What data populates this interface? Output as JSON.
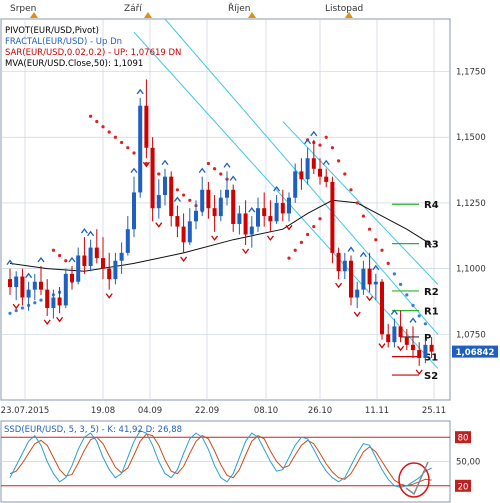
{
  "months": [
    "Srpen",
    "Září",
    "Říjen",
    "Listopad"
  ],
  "main": {
    "indicators": [
      {
        "text": "PIVOT(EUR/USD,Pivot)",
        "color": "#000000"
      },
      {
        "text": "FRACTAL(EUR/USD) -  Up  Dn",
        "color": "#1f5fbf"
      },
      {
        "text": "SAR(EUR/USD,0.02,0.2) -  UP: 1,07619  DN",
        "color": "#d00000"
      },
      {
        "text": "MVA(EUR/USD.Close,50): 1,1091",
        "color": "#000000"
      }
    ],
    "price_ticks": [
      "1,1750",
      "1,1500",
      "1,1250",
      "1,1000",
      "1,0750"
    ],
    "current_price": "1,06842",
    "x_ticks": [
      "23.07.2015",
      "19.08",
      "04.09",
      "22.09",
      "08.10",
      "26.10",
      "11.11",
      "25.11"
    ],
    "pivots": [
      {
        "label": "R4",
        "value": 1.1245
      },
      {
        "label": "R3",
        "value": 1.1095
      },
      {
        "label": "R2",
        "value": 1.0915
      },
      {
        "label": "R1",
        "value": 1.084
      },
      {
        "label": "P",
        "value": 1.074
      },
      {
        "label": "S1",
        "value": 1.0665
      },
      {
        "label": "S2",
        "value": 1.0595
      }
    ]
  },
  "oscillator": {
    "title": "SSD(EUR/USD, 5, 3, 5) - K: 41,92  D: 26,88",
    "ticks": [
      "80",
      "50,00",
      "20"
    ]
  },
  "chart_data": {
    "type": "candlestick",
    "symbol": "EUR/USD",
    "ylim": [
      1.05,
      1.195
    ],
    "current": 1.06842,
    "candles": [
      {
        "o": 1.096,
        "h": 1.1,
        "l": 1.09,
        "c": 1.093
      },
      {
        "o": 1.093,
        "h": 1.099,
        "l": 1.088,
        "c": 1.097
      },
      {
        "o": 1.097,
        "h": 1.1,
        "l": 1.086,
        "c": 1.089
      },
      {
        "o": 1.089,
        "h": 1.095,
        "l": 1.084,
        "c": 1.092
      },
      {
        "o": 1.092,
        "h": 1.098,
        "l": 1.088,
        "c": 1.095
      },
      {
        "o": 1.095,
        "h": 1.101,
        "l": 1.09,
        "c": 1.092
      },
      {
        "o": 1.092,
        "h": 1.096,
        "l": 1.082,
        "c": 1.085
      },
      {
        "o": 1.085,
        "h": 1.092,
        "l": 1.081,
        "c": 1.089
      },
      {
        "o": 1.089,
        "h": 1.093,
        "l": 1.083,
        "c": 1.086
      },
      {
        "o": 1.086,
        "h": 1.1,
        "l": 1.085,
        "c": 1.098
      },
      {
        "o": 1.098,
        "h": 1.101,
        "l": 1.092,
        "c": 1.095
      },
      {
        "o": 1.095,
        "h": 1.108,
        "l": 1.094,
        "c": 1.105
      },
      {
        "o": 1.105,
        "h": 1.112,
        "l": 1.098,
        "c": 1.101
      },
      {
        "o": 1.101,
        "h": 1.111,
        "l": 1.099,
        "c": 1.108
      },
      {
        "o": 1.108,
        "h": 1.115,
        "l": 1.102,
        "c": 1.104
      },
      {
        "o": 1.104,
        "h": 1.112,
        "l": 1.096,
        "c": 1.1
      },
      {
        "o": 1.1,
        "h": 1.106,
        "l": 1.092,
        "c": 1.096
      },
      {
        "o": 1.096,
        "h": 1.106,
        "l": 1.094,
        "c": 1.103
      },
      {
        "o": 1.103,
        "h": 1.11,
        "l": 1.098,
        "c": 1.106
      },
      {
        "o": 1.106,
        "h": 1.12,
        "l": 1.105,
        "c": 1.115
      },
      {
        "o": 1.115,
        "h": 1.135,
        "l": 1.112,
        "c": 1.129
      },
      {
        "o": 1.129,
        "h": 1.165,
        "l": 1.127,
        "c": 1.162
      },
      {
        "o": 1.162,
        "h": 1.172,
        "l": 1.142,
        "c": 1.146
      },
      {
        "o": 1.146,
        "h": 1.15,
        "l": 1.118,
        "c": 1.123
      },
      {
        "o": 1.123,
        "h": 1.134,
        "l": 1.119,
        "c": 1.128
      },
      {
        "o": 1.128,
        "h": 1.138,
        "l": 1.124,
        "c": 1.135
      },
      {
        "o": 1.135,
        "h": 1.137,
        "l": 1.116,
        "c": 1.12
      },
      {
        "o": 1.12,
        "h": 1.124,
        "l": 1.112,
        "c": 1.116
      },
      {
        "o": 1.116,
        "h": 1.121,
        "l": 1.106,
        "c": 1.11
      },
      {
        "o": 1.11,
        "h": 1.123,
        "l": 1.109,
        "c": 1.118
      },
      {
        "o": 1.118,
        "h": 1.126,
        "l": 1.115,
        "c": 1.122
      },
      {
        "o": 1.122,
        "h": 1.135,
        "l": 1.12,
        "c": 1.13
      },
      {
        "o": 1.13,
        "h": 1.133,
        "l": 1.119,
        "c": 1.123
      },
      {
        "o": 1.123,
        "h": 1.128,
        "l": 1.114,
        "c": 1.12
      },
      {
        "o": 1.12,
        "h": 1.13,
        "l": 1.118,
        "c": 1.127
      },
      {
        "o": 1.127,
        "h": 1.137,
        "l": 1.124,
        "c": 1.13
      },
      {
        "o": 1.13,
        "h": 1.132,
        "l": 1.114,
        "c": 1.117
      },
      {
        "o": 1.117,
        "h": 1.124,
        "l": 1.113,
        "c": 1.121
      },
      {
        "o": 1.121,
        "h": 1.126,
        "l": 1.109,
        "c": 1.113
      },
      {
        "o": 1.113,
        "h": 1.12,
        "l": 1.108,
        "c": 1.116
      },
      {
        "o": 1.116,
        "h": 1.127,
        "l": 1.114,
        "c": 1.123
      },
      {
        "o": 1.123,
        "h": 1.129,
        "l": 1.116,
        "c": 1.12
      },
      {
        "o": 1.12,
        "h": 1.126,
        "l": 1.114,
        "c": 1.118
      },
      {
        "o": 1.118,
        "h": 1.128,
        "l": 1.117,
        "c": 1.125
      },
      {
        "o": 1.125,
        "h": 1.13,
        "l": 1.118,
        "c": 1.121
      },
      {
        "o": 1.121,
        "h": 1.129,
        "l": 1.118,
        "c": 1.127
      },
      {
        "o": 1.127,
        "h": 1.14,
        "l": 1.125,
        "c": 1.137
      },
      {
        "o": 1.137,
        "h": 1.142,
        "l": 1.13,
        "c": 1.134
      },
      {
        "o": 1.134,
        "h": 1.146,
        "l": 1.132,
        "c": 1.142
      },
      {
        "o": 1.142,
        "h": 1.149,
        "l": 1.136,
        "c": 1.138
      },
      {
        "o": 1.138,
        "h": 1.142,
        "l": 1.132,
        "c": 1.135
      },
      {
        "o": 1.135,
        "h": 1.138,
        "l": 1.131,
        "c": 1.133
      },
      {
        "o": 1.133,
        "h": 1.135,
        "l": 1.102,
        "c": 1.106
      },
      {
        "o": 1.106,
        "h": 1.108,
        "l": 1.096,
        "c": 1.099
      },
      {
        "o": 1.099,
        "h": 1.106,
        "l": 1.096,
        "c": 1.103
      },
      {
        "o": 1.103,
        "h": 1.105,
        "l": 1.086,
        "c": 1.089
      },
      {
        "o": 1.089,
        "h": 1.095,
        "l": 1.085,
        "c": 1.092
      },
      {
        "o": 1.092,
        "h": 1.103,
        "l": 1.09,
        "c": 1.1
      },
      {
        "o": 1.1,
        "h": 1.106,
        "l": 1.091,
        "c": 1.094
      },
      {
        "o": 1.094,
        "h": 1.098,
        "l": 1.088,
        "c": 1.095
      },
      {
        "o": 1.095,
        "h": 1.096,
        "l": 1.073,
        "c": 1.075
      },
      {
        "o": 1.075,
        "h": 1.079,
        "l": 1.07,
        "c": 1.072
      },
      {
        "o": 1.072,
        "h": 1.081,
        "l": 1.07,
        "c": 1.078
      },
      {
        "o": 1.078,
        "h": 1.084,
        "l": 1.072,
        "c": 1.074
      },
      {
        "o": 1.074,
        "h": 1.077,
        "l": 1.069,
        "c": 1.071
      },
      {
        "o": 1.071,
        "h": 1.078,
        "l": 1.066,
        "c": 1.069
      },
      {
        "o": 1.069,
        "h": 1.072,
        "l": 1.063,
        "c": 1.066
      },
      {
        "o": 1.066,
        "h": 1.073,
        "l": 1.064,
        "c": 1.071
      },
      {
        "o": 1.071,
        "h": 1.074,
        "l": 1.066,
        "c": 1.0684
      }
    ],
    "mva50": [
      [
        0,
        1.102
      ],
      [
        6,
        1.1
      ],
      [
        12,
        1.099
      ],
      [
        20,
        1.102
      ],
      [
        28,
        1.106
      ],
      [
        36,
        1.111
      ],
      [
        44,
        1.115
      ],
      [
        48,
        1.121
      ],
      [
        52,
        1.126
      ],
      [
        56,
        1.125
      ],
      [
        60,
        1.12
      ],
      [
        64,
        1.115
      ],
      [
        68,
        1.1091
      ]
    ],
    "sar": [
      [
        0,
        1.083
      ],
      [
        1,
        1.084
      ],
      [
        2,
        1.085
      ],
      [
        3,
        1.086
      ],
      [
        4,
        1.087
      ],
      [
        5,
        1.088
      ],
      [
        6,
        1.089
      ],
      [
        7,
        1.09
      ],
      [
        8,
        1.091
      ],
      [
        9,
        1.093
      ],
      [
        10,
        1.095
      ],
      [
        11,
        1.098
      ],
      [
        12,
        1.102
      ],
      [
        7,
        1.107
      ],
      [
        8,
        1.105
      ],
      [
        9,
        1.103
      ],
      [
        13,
        1.158
      ],
      [
        14,
        1.156
      ],
      [
        15,
        1.154
      ],
      [
        16,
        1.152
      ],
      [
        17,
        1.15
      ],
      [
        18,
        1.148
      ],
      [
        19,
        1.146
      ],
      [
        20,
        1.144
      ],
      [
        21,
        1.142
      ],
      [
        22,
        1.14
      ],
      [
        23,
        1.138
      ],
      [
        24,
        1.136
      ],
      [
        25,
        1.134
      ],
      [
        26,
        1.132
      ],
      [
        27,
        1.13
      ],
      [
        28,
        1.128
      ],
      [
        29,
        1.126
      ],
      [
        30,
        1.124
      ],
      [
        31,
        1.122
      ],
      [
        32,
        1.14
      ],
      [
        33,
        1.138
      ],
      [
        34,
        1.136
      ],
      [
        35,
        1.134
      ],
      [
        48,
        1.149
      ],
      [
        49,
        1.148
      ],
      [
        50,
        1.147
      ],
      [
        45,
        1.104
      ],
      [
        46,
        1.107
      ],
      [
        47,
        1.11
      ],
      [
        48,
        1.113
      ],
      [
        49,
        1.116
      ],
      [
        50,
        1.119
      ],
      [
        51,
        1.15
      ],
      [
        52,
        1.146
      ],
      [
        53,
        1.141
      ],
      [
        54,
        1.136
      ],
      [
        55,
        1.13
      ],
      [
        56,
        1.125
      ],
      [
        57,
        1.12
      ],
      [
        58,
        1.115
      ],
      [
        59,
        1.111
      ],
      [
        60,
        1.107
      ],
      [
        61,
        1.102
      ],
      [
        62,
        1.098
      ],
      [
        63,
        1.094
      ],
      [
        64,
        1.09
      ],
      [
        65,
        1.086
      ],
      [
        66,
        1.082
      ],
      [
        67,
        1.079
      ]
    ],
    "fractals_up": [
      0,
      3,
      5,
      10,
      12,
      13,
      20,
      21,
      25,
      27,
      31,
      35,
      36,
      39,
      43,
      48,
      49,
      51,
      55,
      57,
      59,
      62,
      65
    ],
    "fractals_down": [
      1,
      6,
      8,
      16,
      22,
      24,
      28,
      33,
      38,
      42,
      45,
      53,
      56,
      58,
      60,
      63,
      66
    ],
    "channel_lines": [
      {
        "from": [
          20,
          1.19
        ],
        "to": [
          69,
          1.062
        ]
      },
      {
        "from": [
          25,
          1.195
        ],
        "to": [
          69,
          1.075
        ]
      },
      {
        "from": [
          44,
          1.156
        ],
        "to": [
          69,
          1.094
        ]
      }
    ],
    "oscillator": {
      "ylim": [
        0,
        100
      ],
      "levels": [
        80,
        50,
        20
      ],
      "k": [
        30,
        45,
        60,
        75,
        82,
        70,
        50,
        35,
        25,
        30,
        45,
        65,
        80,
        85,
        75,
        55,
        40,
        30,
        35,
        55,
        75,
        88,
        85,
        70,
        50,
        35,
        30,
        40,
        60,
        78,
        85,
        80,
        65,
        45,
        30,
        25,
        35,
        55,
        75,
        85,
        80,
        65,
        50,
        38,
        40,
        55,
        70,
        80,
        78,
        65,
        50,
        38,
        30,
        25,
        30,
        45,
        60,
        72,
        70,
        55,
        40,
        28,
        20,
        18,
        20,
        25,
        30,
        38,
        42
      ],
      "d": [
        35,
        38,
        48,
        60,
        72,
        76,
        70,
        55,
        40,
        32,
        34,
        48,
        64,
        77,
        80,
        72,
        57,
        43,
        36,
        42,
        58,
        75,
        84,
        82,
        70,
        52,
        38,
        35,
        44,
        60,
        75,
        82,
        78,
        63,
        46,
        33,
        30,
        40,
        58,
        75,
        82,
        78,
        63,
        50,
        42,
        45,
        58,
        70,
        76,
        72,
        60,
        47,
        37,
        30,
        28,
        35,
        48,
        62,
        68,
        62,
        50,
        38,
        27,
        22,
        20,
        22,
        25,
        28,
        27
      ]
    }
  }
}
